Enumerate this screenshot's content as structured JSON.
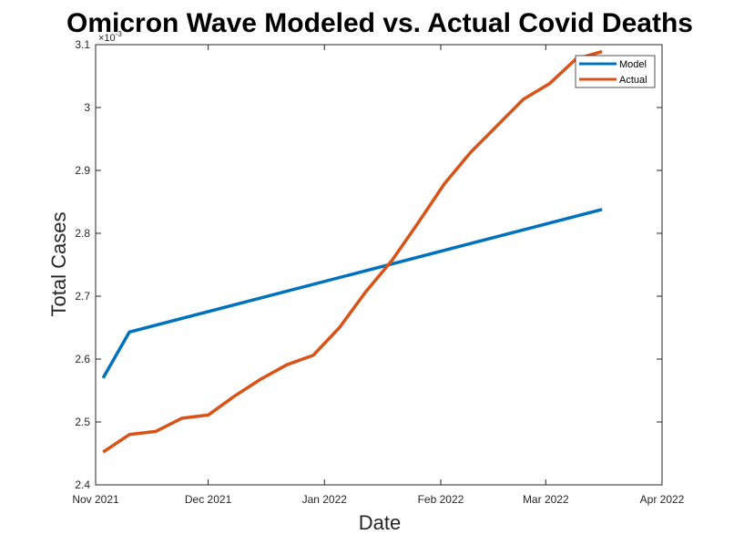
{
  "chart_data": {
    "type": "line",
    "title": "Omicron Wave Modeled vs. Actual Covid Deaths",
    "xlabel": "Date",
    "ylabel": "Total Cases",
    "y_exponent_label": "×10",
    "y_exponent_power": "-3",
    "x_tick_labels": [
      "Nov 2021",
      "Dec 2021",
      "Jan 2022",
      "Feb 2022",
      "Mar 2022",
      "Apr 2022"
    ],
    "x_tick_dates": [
      "2021-11-01",
      "2021-12-01",
      "2022-01-01",
      "2022-02-01",
      "2022-03-01",
      "2022-04-01"
    ],
    "y_tick_labels": [
      "2.4",
      "2.5",
      "2.6",
      "2.7",
      "2.8",
      "2.9",
      "3",
      "3.1"
    ],
    "y_tick_values": [
      2.4,
      2.5,
      2.6,
      2.7,
      2.8,
      2.9,
      3.0,
      3.1
    ],
    "xlim": [
      "2021-11-01",
      "2022-04-01"
    ],
    "ylim": [
      2.4,
      3.1
    ],
    "grid": false,
    "legend_position": "top-right",
    "series": [
      {
        "name": "Model",
        "color": "#0072BD",
        "points": [
          {
            "x": "2021-11-03",
            "y": 2.57
          },
          {
            "x": "2021-11-10",
            "y": 2.643
          },
          {
            "x": "2022-03-16",
            "y": 2.838
          }
        ]
      },
      {
        "name": "Actual",
        "color": "#D95319",
        "points": [
          {
            "x": "2021-11-03",
            "y": 2.452
          },
          {
            "x": "2021-11-10",
            "y": 2.48
          },
          {
            "x": "2021-11-17",
            "y": 2.485
          },
          {
            "x": "2021-11-24",
            "y": 2.506
          },
          {
            "x": "2021-12-01",
            "y": 2.511
          },
          {
            "x": "2021-12-08",
            "y": 2.541
          },
          {
            "x": "2021-12-15",
            "y": 2.568
          },
          {
            "x": "2021-12-22",
            "y": 2.591
          },
          {
            "x": "2021-12-29",
            "y": 2.606
          },
          {
            "x": "2022-01-05",
            "y": 2.65
          },
          {
            "x": "2022-01-12",
            "y": 2.707
          },
          {
            "x": "2022-01-19",
            "y": 2.757
          },
          {
            "x": "2022-01-26",
            "y": 2.817
          },
          {
            "x": "2022-02-02",
            "y": 2.879
          },
          {
            "x": "2022-02-09",
            "y": 2.929
          },
          {
            "x": "2022-02-16",
            "y": 2.971
          },
          {
            "x": "2022-02-23",
            "y": 3.013
          },
          {
            "x": "2022-03-02",
            "y": 3.038
          },
          {
            "x": "2022-03-09",
            "y": 3.077
          },
          {
            "x": "2022-03-16",
            "y": 3.089
          }
        ]
      }
    ]
  }
}
